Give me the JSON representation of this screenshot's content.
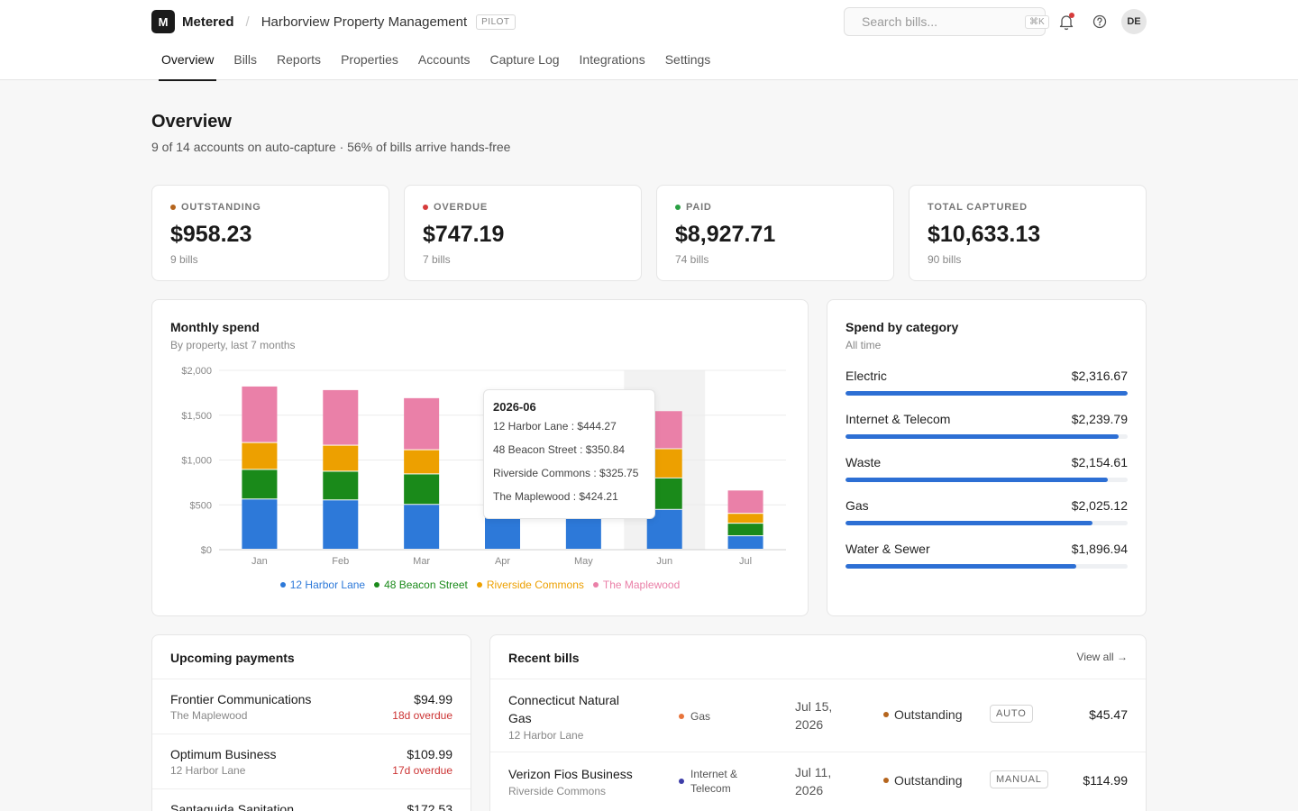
{
  "header": {
    "logo_letter": "M",
    "app_name": "Metered",
    "separator": "/",
    "org_name": "Harborview Property Management",
    "org_badge": "PILOT",
    "search_placeholder": "Search bills...",
    "search_shortcut": "⌘K",
    "avatar_initials": "DE",
    "icons": [
      "search-icon",
      "bell-icon",
      "help-icon"
    ]
  },
  "nav": {
    "tabs": [
      {
        "label": "Overview",
        "active": true
      },
      {
        "label": "Bills"
      },
      {
        "label": "Reports"
      },
      {
        "label": "Properties"
      },
      {
        "label": "Accounts"
      },
      {
        "label": "Capture Log"
      },
      {
        "label": "Integrations"
      },
      {
        "label": "Settings"
      }
    ]
  },
  "page": {
    "title": "Overview",
    "subtitle": "9 of 14 accounts on auto-capture · 56% of bills arrive hands-free"
  },
  "stats": [
    {
      "label": "OUTSTANDING",
      "value": "$958.23",
      "count": "9 bills",
      "color": "#b5651d"
    },
    {
      "label": "OVERDUE",
      "value": "$747.19",
      "count": "7 bills",
      "color": "#d63b3b"
    },
    {
      "label": "PAID",
      "value": "$8,927.71",
      "count": "74 bills",
      "color": "#2aa043"
    },
    {
      "label": "TOTAL CAPTURED",
      "value": "$10,633.13",
      "count": "90 bills",
      "color": ""
    }
  ],
  "monthly": {
    "title": "Monthly spend",
    "subtitle": "By property, last 7 months",
    "tooltip": {
      "title": "2026-06",
      "rows": [
        "12 Harbor Lane : $444.27",
        "48 Beacon Street : $350.84",
        "Riverside Commons : $325.75",
        "The Maplewood : $424.21"
      ]
    }
  },
  "chart_data": {
    "type": "bar",
    "stacked": true,
    "categories": [
      "Jan",
      "Feb",
      "Mar",
      "Apr",
      "May",
      "Jun",
      "Jul"
    ],
    "series": [
      {
        "name": "12 Harbor Lane",
        "color": "#2d79d9",
        "values": [
          560,
          550,
          500,
          360,
          360,
          444.27,
          150
        ]
      },
      {
        "name": "48 Beacon Street",
        "color": "#1a8a1a",
        "values": [
          330,
          320,
          340,
          0,
          0,
          350.84,
          140
        ]
      },
      {
        "name": "Riverside Commons",
        "color": "#eda000",
        "values": [
          300,
          290,
          270,
          0,
          0,
          325.75,
          110
        ]
      },
      {
        "name": "The Maplewood",
        "color": "#ea80a8",
        "values": [
          630,
          620,
          580,
          0,
          0,
          424.21,
          260
        ]
      }
    ],
    "yticks": [
      "$0",
      "$500",
      "$1,000",
      "$1,500",
      "$2,000"
    ],
    "ylim": [
      0,
      2000
    ],
    "highlighted_category": "Jun",
    "grid": true,
    "legend_position": "bottom"
  },
  "categories": {
    "title": "Spend by category",
    "subtitle": "All time",
    "max": 2316.67,
    "items": [
      {
        "name": "Electric",
        "amount": "$2,316.67",
        "value": 2316.67
      },
      {
        "name": "Internet & Telecom",
        "amount": "$2,239.79",
        "value": 2239.79
      },
      {
        "name": "Waste",
        "amount": "$2,154.61",
        "value": 2154.61
      },
      {
        "name": "Gas",
        "amount": "$2,025.12",
        "value": 2025.12
      },
      {
        "name": "Water & Sewer",
        "amount": "$1,896.94",
        "value": 1896.94
      }
    ]
  },
  "upcoming": {
    "title": "Upcoming payments",
    "items": [
      {
        "vendor": "Frontier Communications",
        "property": "The Maplewood",
        "amount": "$94.99",
        "status": "18d overdue"
      },
      {
        "vendor": "Optimum Business",
        "property": "12 Harbor Lane",
        "amount": "$109.99",
        "status": "17d overdue"
      },
      {
        "vendor": "Santaguida Sanitation",
        "property": "",
        "amount": "$172.53",
        "status": ""
      }
    ]
  },
  "recent": {
    "title": "Recent bills",
    "view_all": "View all →",
    "items": [
      {
        "vendor": "Connecticut Natural Gas",
        "property": "12 Harbor Lane",
        "category": "Gas",
        "category_color": "#e8743b",
        "date": "Jul 15, 2026",
        "status": "Outstanding",
        "status_color": "#b5651d",
        "capture": "AUTO",
        "amount": "$45.47"
      },
      {
        "vendor": "Verizon Fios Business",
        "property": "Riverside Commons",
        "category": "Internet & Telecom",
        "category_color": "#3d3da8",
        "date": "Jul 11, 2026",
        "status": "Outstanding",
        "status_color": "#b5651d",
        "capture": "MANUAL",
        "amount": "$114.99"
      }
    ]
  }
}
